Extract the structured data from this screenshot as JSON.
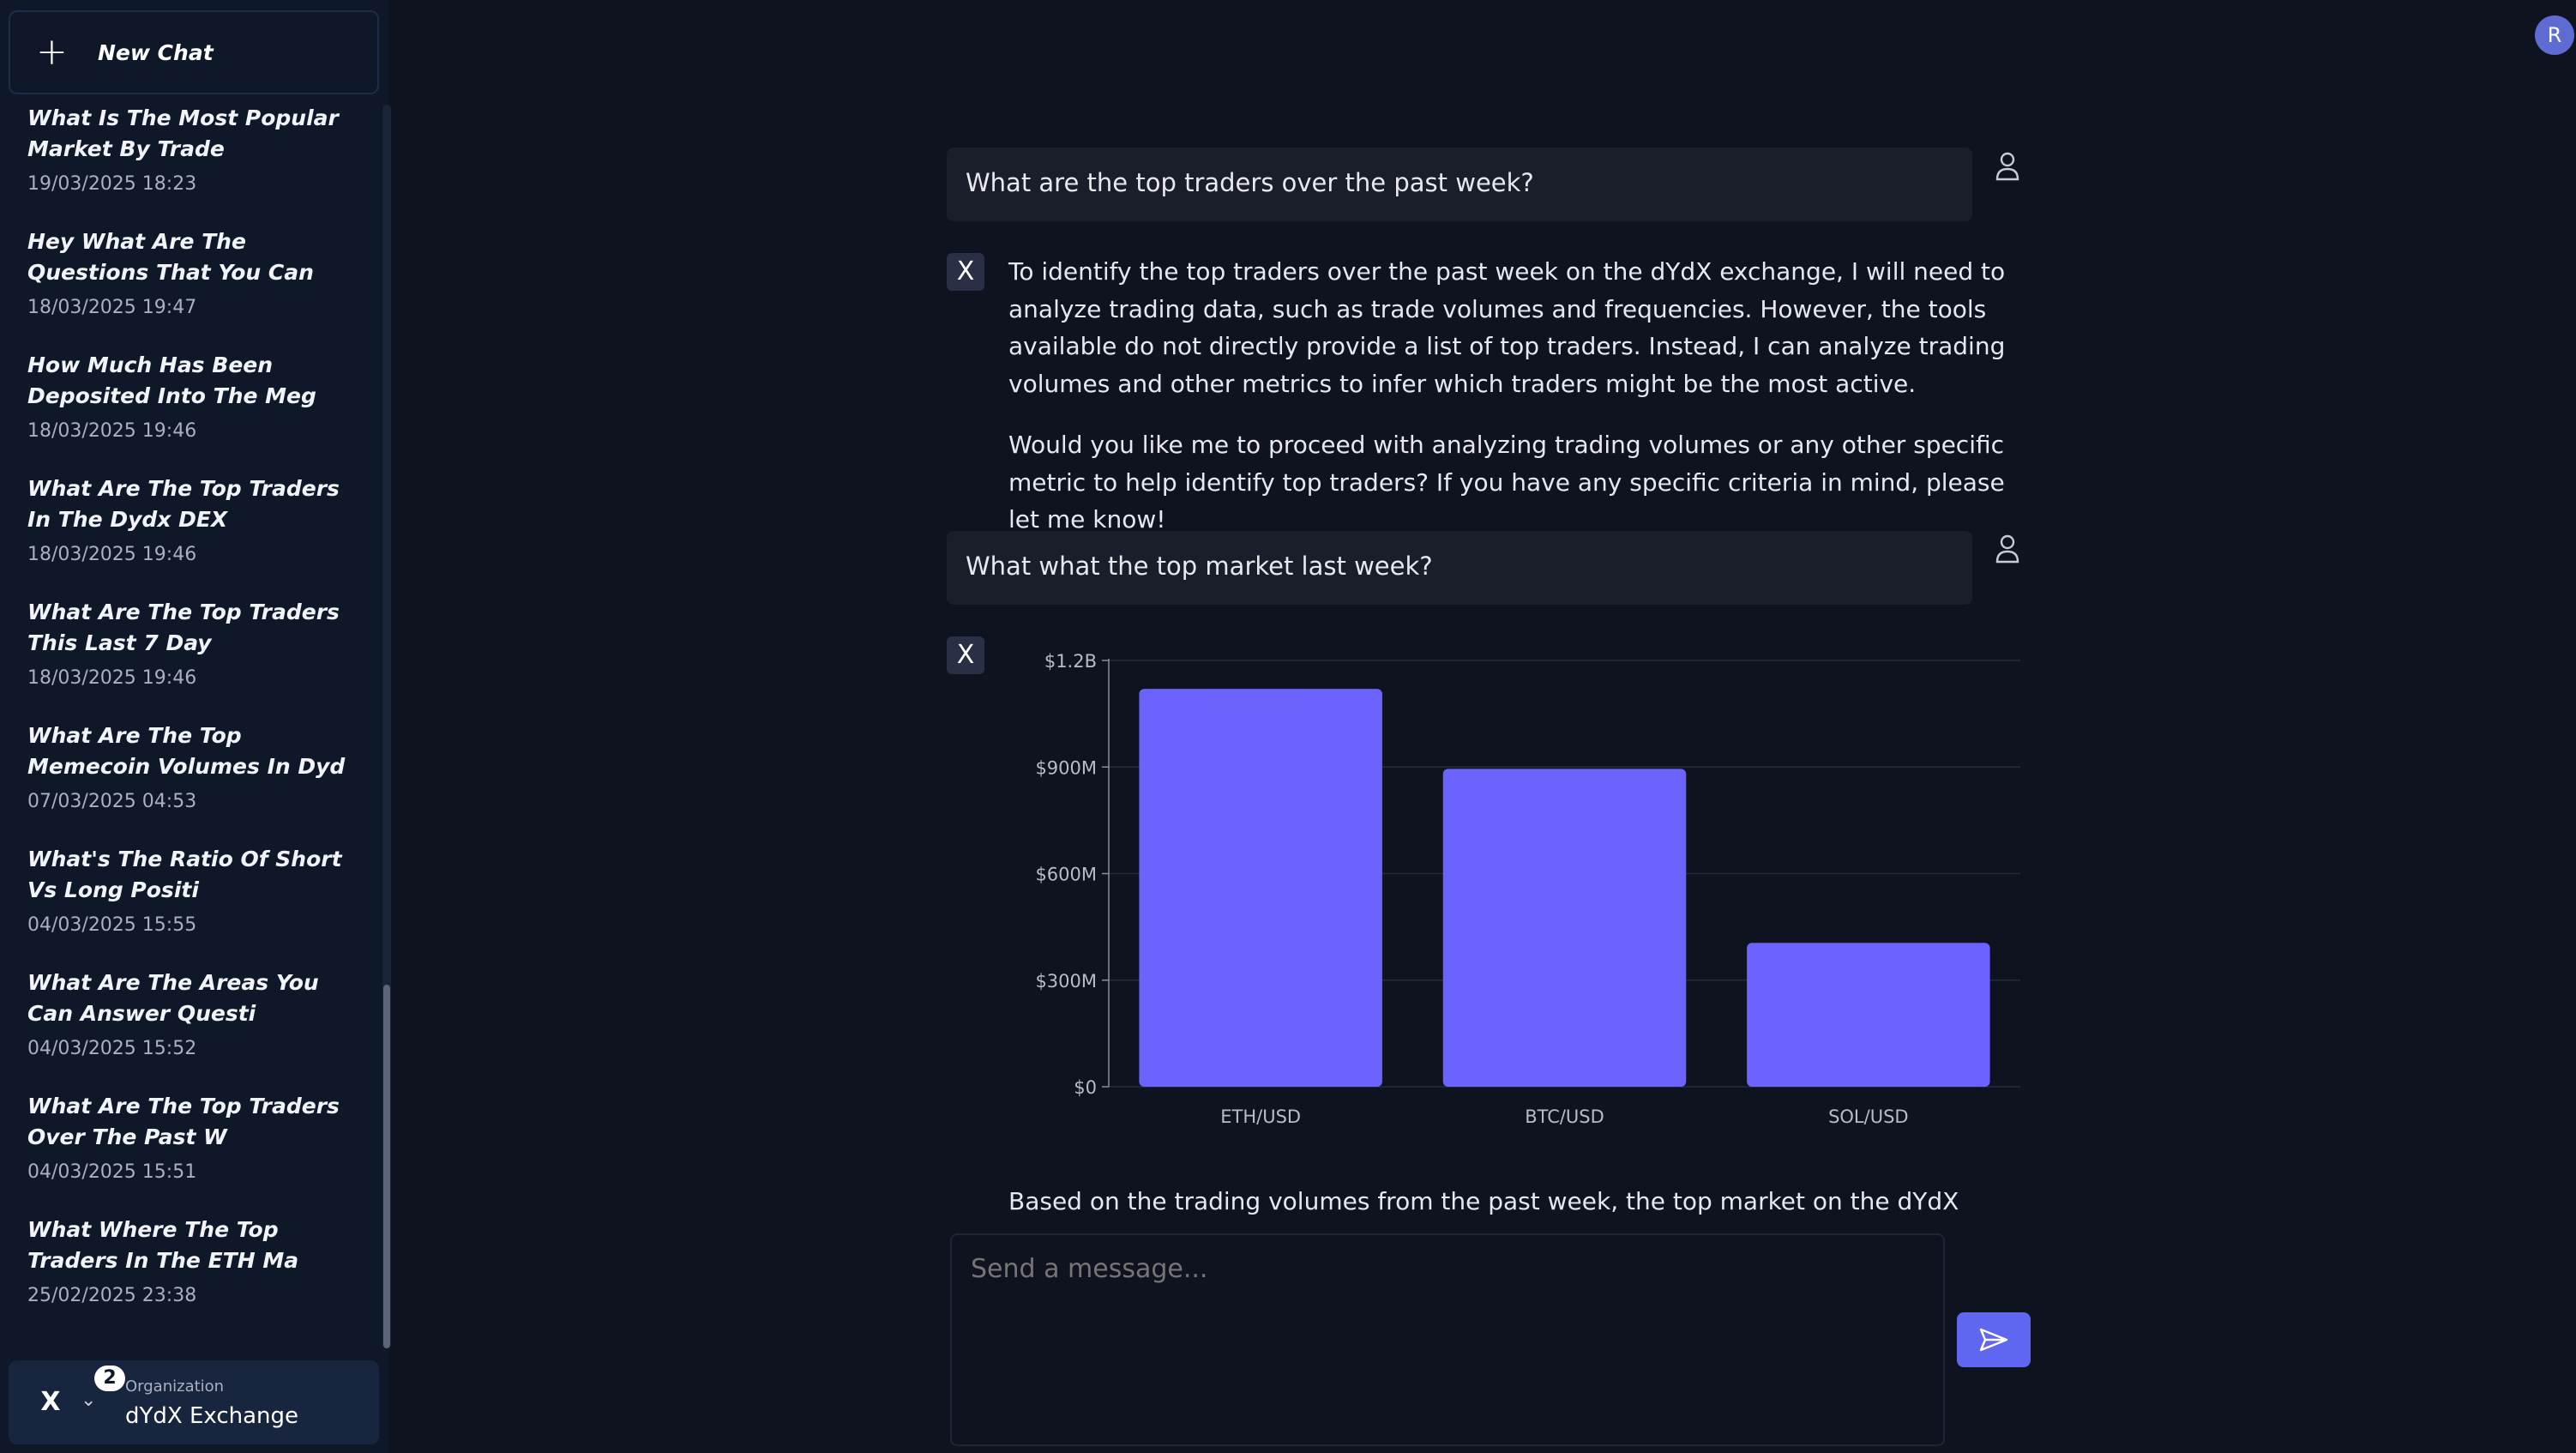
{
  "sidebar": {
    "new_chat_label": "New Chat",
    "history": [
      {
        "title": "What Is The Most Popular Market By Trade",
        "date": "19/03/2025 18:23"
      },
      {
        "title": "Hey What Are The Questions That You Can",
        "date": "18/03/2025 19:47"
      },
      {
        "title": "How Much Has Been Deposited Into The Meg",
        "date": "18/03/2025 19:46"
      },
      {
        "title": "What Are The Top Traders In The Dydx DEX",
        "date": "18/03/2025 19:46"
      },
      {
        "title": "What Are The Top Traders This Last 7 Day",
        "date": "18/03/2025 19:46"
      },
      {
        "title": "What Are The Top Memecoin Volumes In Dyd",
        "date": "07/03/2025 04:53"
      },
      {
        "title": "What's The Ratio Of Short Vs Long Positi",
        "date": "04/03/2025 15:55"
      },
      {
        "title": "What Are The Areas You Can Answer Questi",
        "date": "04/03/2025 15:52"
      },
      {
        "title": "What Are The Top Traders Over The Past W",
        "date": "04/03/2025 15:51"
      },
      {
        "title": "What Where The Top Traders In The ETH Ma",
        "date": "25/02/2025 23:38"
      }
    ],
    "org": {
      "badge_count": "2",
      "label": "Organization",
      "name": "dYdX Exchange"
    }
  },
  "user_avatar_initial": "R",
  "chat": {
    "bot_mark": "X",
    "q1": "What are the top traders over the past week?",
    "a1_p1": "To identify the top traders over the past week on the dYdX exchange, I will need to analyze trading data, such as trade volumes and frequencies. However, the tools available do not directly provide a list of top traders. Instead, I can analyze trading volumes and other metrics to infer which traders might be the most active.",
    "a1_p2": "Would you like me to proceed with analyzing trading volumes or any other specific metric to help identify top traders? If you have any specific criteria in mind, please let me know!",
    "q2": "What what the top market last week?",
    "a2_partial": "Based on the trading volumes from the past week, the top market on the dYdX exchange was"
  },
  "composer": {
    "placeholder": "Send a message..."
  },
  "colors": {
    "bar": "#6c63ff",
    "accent": "#5f66f0"
  },
  "chart_data": {
    "type": "bar",
    "categories": [
      "ETH/USD",
      "BTC/USD",
      "SOL/USD"
    ],
    "values": [
      1120000000,
      895000000,
      405000000
    ],
    "ylim": [
      0,
      1200000000
    ],
    "yticks": [
      0,
      300000000,
      600000000,
      900000000,
      1200000000
    ],
    "ytick_labels": [
      "$0",
      "$300M",
      "$600M",
      "$900M",
      "$1.2B"
    ],
    "grid": true,
    "title": "",
    "xlabel": "",
    "ylabel": ""
  }
}
